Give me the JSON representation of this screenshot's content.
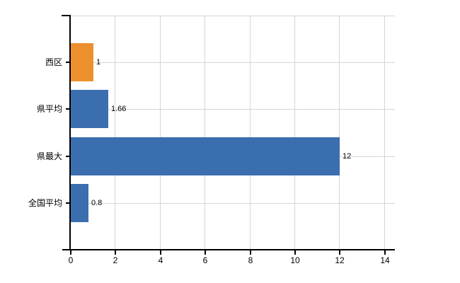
{
  "chart_data": {
    "type": "bar",
    "orientation": "horizontal",
    "title": "",
    "xlabel": "",
    "ylabel": "",
    "categories": [
      "西区",
      "県平均",
      "県最大",
      "全国平均"
    ],
    "values": [
      1,
      1.66,
      12,
      0.8
    ],
    "value_labels": [
      "1",
      "1.66",
      "12",
      "0.8"
    ],
    "bar_colors": [
      "#ec902e",
      "#3b6eae",
      "#3b6eae",
      "#3b6eae"
    ],
    "xlim": [
      0,
      14
    ],
    "x_ticks": [
      0,
      2,
      4,
      6,
      8,
      10,
      12,
      14
    ],
    "x_tick_labels": [
      "0",
      "2",
      "4",
      "6",
      "8",
      "10",
      "12",
      "14"
    ],
    "grid": true,
    "legend": false,
    "colors": {
      "bar_highlight": "#ec902e",
      "bar_default": "#3b6eae",
      "grid": "#d5d5d5",
      "axis": "#000000",
      "text": "#000000",
      "background": "#ffffff"
    }
  }
}
